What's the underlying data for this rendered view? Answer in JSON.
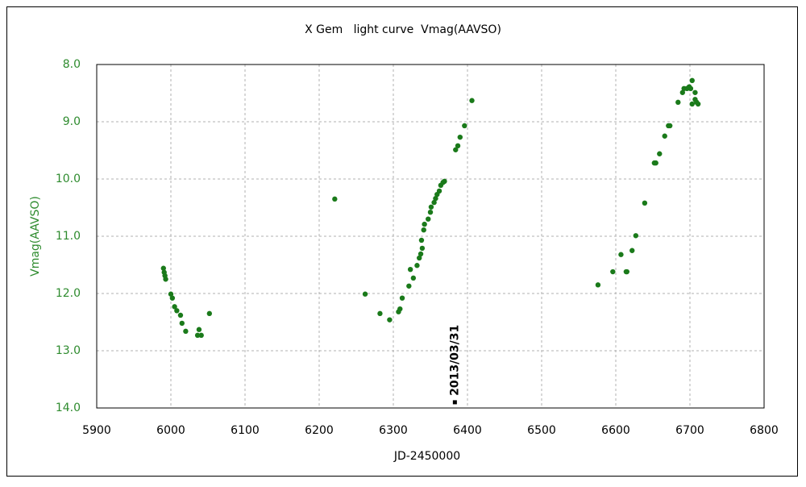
{
  "chart_data": {
    "type": "scatter",
    "title": "X Gem   light curve  Vmag(AAVSO)",
    "xlabel": "JD-2450000",
    "ylabel": "Vmag(AAVSO)",
    "color": "#1a7a1a",
    "axis_label_color": "#2e8b2e",
    "grid": true,
    "y_inverted": true,
    "xlim": [
      5900,
      6800
    ],
    "xticks": [
      5900,
      6000,
      6100,
      6200,
      6300,
      6400,
      6500,
      6600,
      6700,
      6800
    ],
    "ylim": [
      8,
      14
    ],
    "yticks": [
      {
        "value": 8,
        "label": "8.0"
      },
      {
        "value": 9,
        "label": "9.0"
      },
      {
        "value": 10,
        "label": "10.0"
      },
      {
        "value": 11,
        "label": "11.0"
      },
      {
        "value": 12,
        "label": "12.0"
      },
      {
        "value": 13,
        "label": "13.0"
      },
      {
        "value": 14,
        "label": "14.0"
      }
    ],
    "x": [
      5990,
      5991,
      5992,
      5993,
      6000,
      6002,
      6005,
      6008,
      6013,
      6015,
      6020,
      6036,
      6038,
      6041,
      6052,
      6221,
      6262,
      6282,
      6295,
      6307,
      6309,
      6312,
      6321,
      6323,
      6327,
      6332,
      6335,
      6337,
      6339,
      6338,
      6341,
      6342,
      6347,
      6350,
      6351,
      6355,
      6357,
      6359,
      6362,
      6364,
      6367,
      6369,
      6384,
      6387,
      6390,
      6396,
      6406,
      6576,
      6596,
      6607,
      6614,
      6615,
      6622,
      6627,
      6639,
      6652,
      6654,
      6659,
      6666,
      6671,
      6673,
      6684,
      6690,
      6692,
      6696,
      6699,
      6701,
      6703,
      6707,
      6703,
      6709,
      6711,
      6707
    ],
    "values": [
      11.56,
      11.63,
      11.69,
      11.75,
      12.01,
      12.08,
      12.23,
      12.3,
      12.38,
      12.52,
      12.66,
      12.73,
      12.63,
      12.73,
      12.35,
      10.35,
      12.01,
      12.35,
      12.46,
      12.32,
      12.27,
      12.08,
      11.87,
      11.58,
      11.73,
      11.51,
      11.38,
      11.31,
      11.21,
      11.07,
      10.89,
      10.79,
      10.7,
      10.58,
      10.49,
      10.41,
      10.34,
      10.27,
      10.21,
      10.11,
      10.06,
      10.04,
      9.49,
      9.42,
      9.27,
      9.07,
      8.63,
      11.85,
      11.62,
      11.32,
      11.62,
      11.62,
      11.25,
      10.99,
      10.42,
      9.72,
      9.72,
      9.56,
      9.25,
      9.07,
      9.07,
      8.66,
      8.49,
      8.42,
      8.42,
      8.39,
      8.42,
      8.28,
      8.49,
      8.69,
      8.66,
      8.69,
      8.61
    ],
    "annotations": [
      {
        "text": "2013/03/31",
        "x": 6383,
        "y": 13.9
      }
    ]
  }
}
